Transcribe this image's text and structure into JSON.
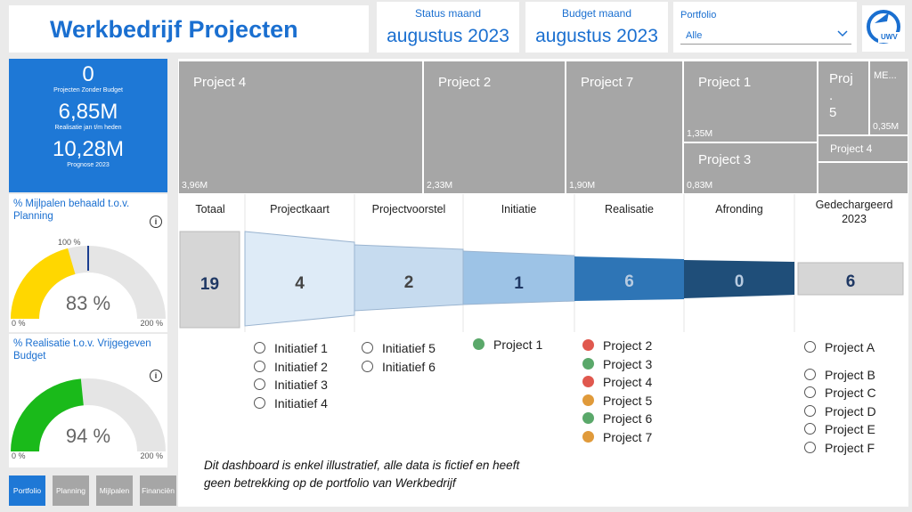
{
  "header": {
    "title": "Werkbedrijf Projecten",
    "status": {
      "label": "Status maand",
      "value": "augustus 2023"
    },
    "budget": {
      "label": "Budget maand",
      "value": "augustus 2023"
    },
    "portfolio": {
      "label": "Portfolio",
      "selected": "Alle"
    },
    "logo_text": "UWV"
  },
  "kpis": [
    {
      "value": "0",
      "label": "Projecten Zonder Budget"
    },
    {
      "value": "6,85M",
      "label": "Realisatie jan t/m heden"
    },
    {
      "value": "10,28M",
      "label": "Prognose 2023"
    }
  ],
  "gauges": [
    {
      "title": "% Mijlpalen behaald t.o.v. Planning",
      "value": 83,
      "display": "83 %",
      "min_label": "0 %",
      "max_label": "200 %",
      "target_label": "100 %",
      "color": "#ffd700"
    },
    {
      "title": "% Realisatie t.o.v. Vrijgegeven Budget",
      "value": 94,
      "display": "94 %",
      "min_label": "0 %",
      "max_label": "200 %",
      "color": "#1aba1a"
    }
  ],
  "nav": [
    "Portfolio",
    "Planning",
    "Mijlpalen",
    "Financiën"
  ],
  "treemap": [
    {
      "name": "Project 4",
      "value": "3,96M"
    },
    {
      "name": "Project 2",
      "value": "2,33M"
    },
    {
      "name": "Project 7",
      "value": "1,90M"
    },
    {
      "name": "Project 1",
      "value": "1,35M"
    },
    {
      "name": "Project 3",
      "value": "0,83M"
    },
    {
      "name": "Proj\n.\n5",
      "value": ""
    },
    {
      "name": "ME...",
      "value": "0,35M"
    },
    {
      "name": "Project 4",
      "value": ""
    }
  ],
  "funnel": {
    "stages": [
      "Totaal",
      "Projectkaart",
      "Projectvoorstel",
      "Initiatie",
      "Realisatie",
      "Afronding",
      "Gedechargeerd 2023"
    ],
    "counts": [
      "19",
      "4",
      "2",
      "1",
      "6",
      "0",
      "6"
    ]
  },
  "lists": {
    "projectkaart": [
      "Initiatief 1",
      "Initiatief 2",
      "Initiatief 3",
      "Initiatief 4"
    ],
    "projectvoorstel": [
      "Initiatief 5",
      "Initiatief 6"
    ],
    "initiatie": [
      {
        "name": "Project 1",
        "status": "#5aa86a"
      }
    ],
    "realisatie": [
      {
        "name": "Project 2",
        "status": "#e0584e"
      },
      {
        "name": "Project 3",
        "status": "#5aa86a"
      },
      {
        "name": "Project 4",
        "status": "#e0584e"
      },
      {
        "name": "Project 5",
        "status": "#e09a3a"
      },
      {
        "name": "Project 6",
        "status": "#5aa86a"
      },
      {
        "name": "Project 7",
        "status": "#e09a3a"
      }
    ],
    "gedechargeerd": [
      "Project A",
      "Project B",
      "Project C",
      "Project D",
      "Project E",
      "Project F"
    ]
  },
  "disclaimer": [
    "Dit dashboard is enkel illustratief, alle data is fictief en heeft",
    "geen betrekking op de portfolio van Werkbedrijf"
  ]
}
